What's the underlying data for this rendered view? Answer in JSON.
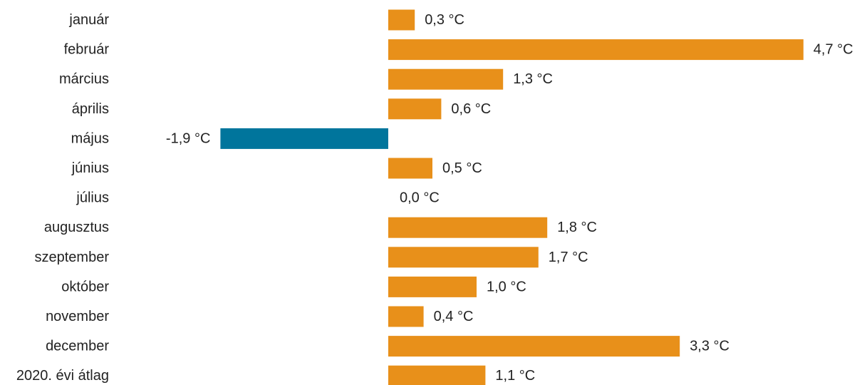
{
  "chart_data": {
    "type": "bar",
    "orientation": "horizontal",
    "categories": [
      "január",
      "február",
      "március",
      "április",
      "május",
      "június",
      "július",
      "augusztus",
      "szeptember",
      "október",
      "november",
      "december",
      "2020. évi átlag"
    ],
    "values": [
      0.3,
      4.7,
      1.3,
      0.6,
      -1.9,
      0.5,
      0.0,
      1.8,
      1.7,
      1.0,
      0.4,
      3.3,
      1.1
    ],
    "value_labels": [
      "0,3 °C",
      "4,7 °C",
      "1,3 °C",
      "0,6 °C",
      "-1,9 °C",
      "0,5 °C",
      "0,0 °C",
      "1,8 °C",
      "1,7 °C",
      "1,0 °C",
      "0,4 °C",
      "3,3 °C",
      "1,1 °C"
    ],
    "unit": "°C",
    "xlim": [
      -1.9,
      4.7
    ],
    "colors": {
      "positive": "#E8901A",
      "negative": "#00759C"
    },
    "grid": false,
    "legend": "none"
  }
}
